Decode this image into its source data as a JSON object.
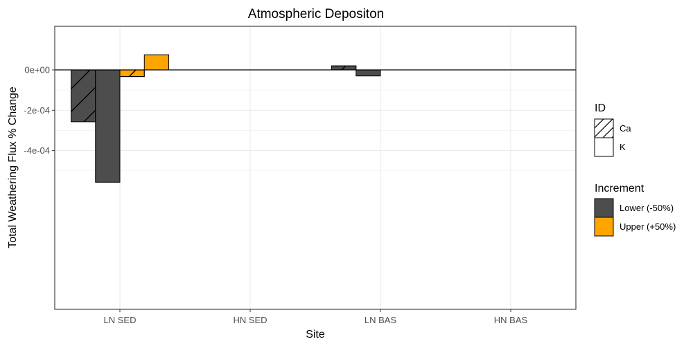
{
  "chart_data": {
    "type": "bar",
    "title": "Atmospheric Depositon",
    "xlabel": "Site",
    "ylabel": "Total Weathering Flux % Change",
    "categories": [
      "LN SED",
      "HN SED",
      "LN BAS",
      "HN BAS"
    ],
    "ylim": [
      -0.00056,
      0.000112
    ],
    "yticks": [
      {
        "value": 0,
        "label": "0e+00"
      },
      {
        "value": -0.0002,
        "label": "-2e-04"
      },
      {
        "value": -0.0004,
        "label": "-4e-04"
      }
    ],
    "series": [
      {
        "id": "Ca",
        "increment": "Lower (-50%)",
        "values": [
          -0.000257,
          null,
          2e-05,
          null
        ]
      },
      {
        "id": "K",
        "increment": "Lower (-50%)",
        "values": [
          -0.000557,
          null,
          -3e-05,
          null
        ]
      },
      {
        "id": "Ca",
        "increment": "Upper (+50%)",
        "values": [
          -3.3e-05,
          null,
          null,
          null
        ]
      },
      {
        "id": "K",
        "increment": "Upper (+50%)",
        "values": [
          7.5e-05,
          null,
          null,
          null
        ]
      }
    ],
    "grid": true,
    "legend": {
      "position": "right",
      "id_title": "ID",
      "id_items": [
        {
          "label": "Ca",
          "pattern": "hatched"
        },
        {
          "label": "K",
          "pattern": "solid"
        }
      ],
      "increment_title": "Increment",
      "increment_items": [
        {
          "label": "Lower (-50%)",
          "color": "#4d4d4d"
        },
        {
          "label": "Upper (+50%)",
          "color": "#ffa500"
        }
      ]
    }
  }
}
